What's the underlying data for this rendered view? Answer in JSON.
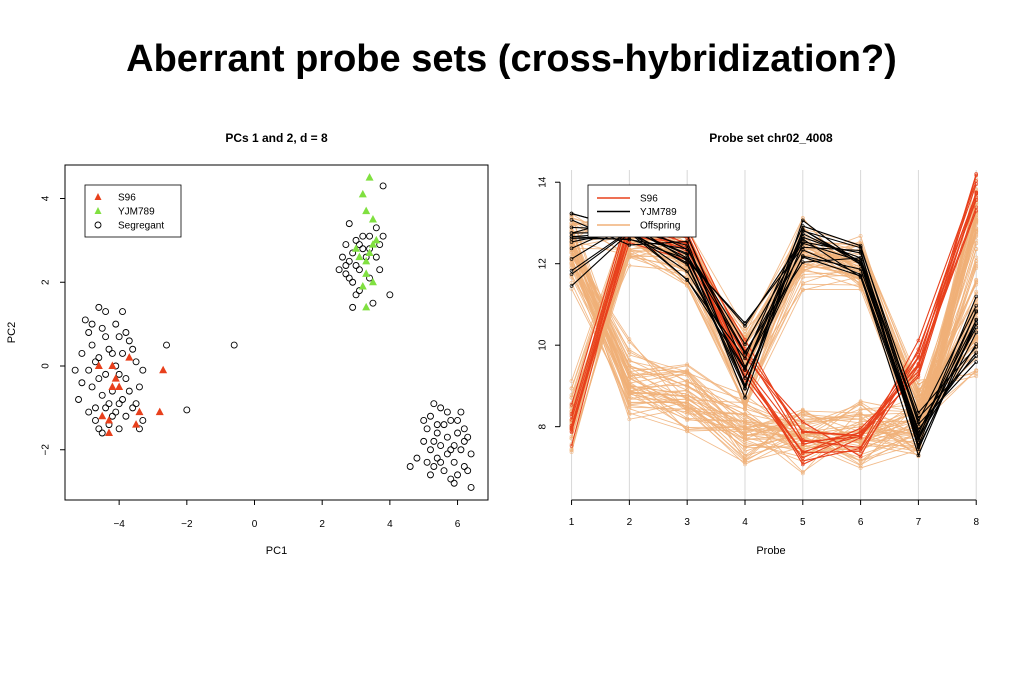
{
  "slide": {
    "title": "Aberrant probe sets (cross-hybridization?)"
  },
  "colors": {
    "s96": "#e8401c",
    "yjm789": "#80e040",
    "segregant": "#000000",
    "offspring": "#f0b078"
  },
  "chart_data": [
    {
      "type": "scatter",
      "title": "PCs 1 and 2, d = 8",
      "xlabel": "PC1",
      "ylabel": "PC2",
      "xlim": [
        -5.6,
        6.9
      ],
      "ylim": [
        -3.2,
        4.8
      ],
      "xticks": [
        -4,
        -2,
        0,
        2,
        4,
        6
      ],
      "yticks": [
        -2,
        0,
        2,
        4
      ],
      "legend": {
        "position": "top-left",
        "entries": [
          "S96",
          "YJM789",
          "Segregant"
        ]
      },
      "series": [
        {
          "name": "S96",
          "marker": "triangle",
          "color": "#e8401c",
          "points": [
            [
              -4.6,
              0.0
            ],
            [
              -4.2,
              0.0
            ],
            [
              -3.7,
              0.2
            ],
            [
              -4.2,
              -0.5
            ],
            [
              -4.0,
              -0.5
            ],
            [
              -4.5,
              -1.2
            ],
            [
              -4.3,
              -1.3
            ],
            [
              -4.3,
              -1.6
            ],
            [
              -3.4,
              -1.1
            ],
            [
              -3.5,
              -1.4
            ],
            [
              -2.8,
              -1.1
            ],
            [
              -2.7,
              -0.1
            ],
            [
              -4.1,
              -0.3
            ]
          ]
        },
        {
          "name": "YJM789",
          "marker": "triangle",
          "color": "#80e040",
          "points": [
            [
              3.4,
              4.5
            ],
            [
              3.2,
              4.1
            ],
            [
              3.3,
              3.7
            ],
            [
              3.5,
              3.5
            ],
            [
              3.5,
              2.9
            ],
            [
              3.6,
              3.0
            ],
            [
              3.1,
              2.6
            ],
            [
              3.3,
              2.5
            ],
            [
              3.3,
              2.2
            ],
            [
              3.5,
              2.0
            ],
            [
              3.2,
              1.9
            ],
            [
              3.3,
              1.4
            ],
            [
              3.0,
              2.8
            ],
            [
              3.4,
              2.7
            ]
          ]
        },
        {
          "name": "Segregant",
          "marker": "circle",
          "color": "#000000",
          "points": [
            [
              -5.2,
              -0.8
            ],
            [
              -5.1,
              0.3
            ],
            [
              -5.0,
              1.1
            ],
            [
              -4.9,
              0.8
            ],
            [
              -4.9,
              -0.1
            ],
            [
              -4.8,
              -0.5
            ],
            [
              -4.8,
              0.5
            ],
            [
              -4.7,
              -1.0
            ],
            [
              -4.7,
              -1.3
            ],
            [
              -4.6,
              1.4
            ],
            [
              -4.6,
              0.2
            ],
            [
              -4.6,
              -0.3
            ],
            [
              -4.5,
              -0.7
            ],
            [
              -4.5,
              -1.6
            ],
            [
              -4.4,
              1.3
            ],
            [
              -4.4,
              0.7
            ],
            [
              -4.4,
              -0.2
            ],
            [
              -4.3,
              -0.9
            ],
            [
              -4.3,
              -1.4
            ],
            [
              -4.2,
              0.3
            ],
            [
              -4.2,
              -0.6
            ],
            [
              -4.1,
              1.0
            ],
            [
              -4.1,
              -1.1
            ],
            [
              -4.0,
              0.7
            ],
            [
              -4.0,
              -0.2
            ],
            [
              -4.0,
              -1.5
            ],
            [
              -3.9,
              0.3
            ],
            [
              -3.9,
              -0.8
            ],
            [
              -3.8,
              -0.3
            ],
            [
              -3.8,
              -1.2
            ],
            [
              -3.7,
              0.6
            ],
            [
              -3.7,
              -0.6
            ],
            [
              -3.6,
              -1.0
            ],
            [
              -3.5,
              0.1
            ],
            [
              -3.4,
              -0.5
            ],
            [
              -3.4,
              -1.5
            ],
            [
              -3.3,
              -0.1
            ],
            [
              -5.3,
              -0.1
            ],
            [
              -5.1,
              -0.4
            ],
            [
              -4.9,
              -1.1
            ],
            [
              -4.8,
              1.0
            ],
            [
              -4.7,
              0.1
            ],
            [
              -4.6,
              -1.5
            ],
            [
              -4.5,
              0.9
            ],
            [
              -4.4,
              -1.0
            ],
            [
              -4.3,
              0.4
            ],
            [
              -4.2,
              -1.2
            ],
            [
              -4.1,
              0.0
            ],
            [
              -4.0,
              -0.9
            ],
            [
              -3.9,
              1.3
            ],
            [
              -3.8,
              0.8
            ],
            [
              -3.6,
              0.4
            ],
            [
              -3.5,
              -0.9
            ],
            [
              -3.3,
              -1.3
            ],
            [
              -2.6,
              0.5
            ],
            [
              -2.0,
              -1.05
            ],
            [
              -0.6,
              0.5
            ],
            [
              2.5,
              2.3
            ],
            [
              2.6,
              2.6
            ],
            [
              2.7,
              2.9
            ],
            [
              2.7,
              2.2
            ],
            [
              2.8,
              3.4
            ],
            [
              2.8,
              2.5
            ],
            [
              2.9,
              2.0
            ],
            [
              2.9,
              2.7
            ],
            [
              2.9,
              1.4
            ],
            [
              3.0,
              2.4
            ],
            [
              3.0,
              3.0
            ],
            [
              3.1,
              2.3
            ],
            [
              3.1,
              1.8
            ],
            [
              3.2,
              2.8
            ],
            [
              3.2,
              3.1
            ],
            [
              3.3,
              2.6
            ],
            [
              3.4,
              2.8
            ],
            [
              3.4,
              2.1
            ],
            [
              3.5,
              1.5
            ],
            [
              3.6,
              2.6
            ],
            [
              3.7,
              2.9
            ],
            [
              3.7,
              2.3
            ],
            [
              3.8,
              3.1
            ],
            [
              3.8,
              4.3
            ],
            [
              4.0,
              1.7
            ],
            [
              3.6,
              3.3
            ],
            [
              2.8,
              2.1
            ],
            [
              3.0,
              1.7
            ],
            [
              3.4,
              3.1
            ],
            [
              3.1,
              2.9
            ],
            [
              2.7,
              2.4
            ],
            [
              4.6,
              -2.4
            ],
            [
              4.8,
              -2.2
            ],
            [
              5.0,
              -1.8
            ],
            [
              5.1,
              -2.3
            ],
            [
              5.1,
              -1.5
            ],
            [
              5.2,
              -2.0
            ],
            [
              5.2,
              -1.2
            ],
            [
              5.3,
              -2.4
            ],
            [
              5.3,
              -0.9
            ],
            [
              5.4,
              -1.6
            ],
            [
              5.4,
              -2.2
            ],
            [
              5.5,
              -1.0
            ],
            [
              5.5,
              -1.9
            ],
            [
              5.6,
              -2.5
            ],
            [
              5.6,
              -1.4
            ],
            [
              5.7,
              -2.1
            ],
            [
              5.7,
              -1.7
            ],
            [
              5.8,
              -2.7
            ],
            [
              5.8,
              -1.3
            ],
            [
              5.9,
              -2.3
            ],
            [
              5.9,
              -1.9
            ],
            [
              6.0,
              -2.6
            ],
            [
              6.0,
              -1.6
            ],
            [
              6.1,
              -1.1
            ],
            [
              6.1,
              -2.0
            ],
            [
              6.2,
              -2.4
            ],
            [
              6.2,
              -1.5
            ],
            [
              6.3,
              -2.5
            ],
            [
              6.4,
              -2.1
            ],
            [
              6.4,
              -2.9
            ],
            [
              5.9,
              -2.8
            ],
            [
              5.3,
              -1.8
            ],
            [
              5.5,
              -2.3
            ],
            [
              5.7,
              -1.1
            ],
            [
              6.0,
              -1.3
            ],
            [
              5.2,
              -2.6
            ],
            [
              6.2,
              -1.8
            ],
            [
              5.4,
              -1.4
            ],
            [
              5.8,
              -2.0
            ],
            [
              5.0,
              -1.3
            ],
            [
              6.3,
              -1.7
            ]
          ]
        }
      ]
    },
    {
      "type": "line",
      "title": "Probe set chr02_4008",
      "xlabel": "Probe",
      "ylabel": "",
      "x": [
        1,
        2,
        3,
        4,
        5,
        6,
        7,
        8
      ],
      "xlim": [
        0.8,
        8.1
      ],
      "ylim": [
        6.2,
        14.3
      ],
      "yticks": [
        8,
        10,
        12,
        14
      ],
      "grid": "vertical",
      "legend": {
        "position": "top-left",
        "entries": [
          "S96",
          "YJM789",
          "Offspring"
        ]
      },
      "series": [
        {
          "name": "Offspring",
          "color": "#f0b078",
          "profiles": {
            "segregant_A": [
              13.0,
              12.8,
              12.4,
              9.8,
              12.3,
              12.0,
              8.3,
              10.5
            ],
            "segregant_B": [
              12.5,
              9.0,
              8.8,
              7.8,
              7.8,
              7.6,
              8.0,
              12.5
            ],
            "segregant_C": [
              8.0,
              12.8,
              12.0,
              9.0,
              12.0,
              11.7,
              8.2,
              11.0
            ],
            "segregant_D": [
              12.6,
              9.5,
              9.0,
              8.3,
              7.5,
              7.8,
              8.2,
              13.2
            ],
            "segregant_E": [
              8.5,
              12.6,
              12.2,
              10.0,
              12.5,
              12.1,
              8.5,
              9.8
            ],
            "segregant_F": [
              12.0,
              8.8,
              8.5,
              7.5,
              7.8,
              8.0,
              7.8,
              13.5
            ]
          }
        },
        {
          "name": "S96",
          "color": "#e8401c",
          "profiles": {
            "s96_1": [
              8.0,
              12.9,
              12.6,
              9.5,
              7.4,
              7.8,
              9.5,
              13.7
            ],
            "s96_2": [
              8.3,
              13.0,
              12.3,
              9.8,
              7.8,
              7.5,
              10.0,
              13.8
            ],
            "s96_3": [
              7.8,
              12.7,
              12.4,
              9.2,
              7.2,
              7.6,
              9.8,
              13.4
            ],
            "s96_4": [
              8.2,
              12.8,
              12.6,
              9.6,
              7.6,
              7.7,
              9.4,
              13.9
            ]
          }
        },
        {
          "name": "YJM789",
          "color": "#000000",
          "profiles": {
            "yjm_1": [
              13.2,
              12.8,
              12.4,
              9.2,
              12.5,
              12.1,
              7.8,
              10.0
            ],
            "yjm_2": [
              12.8,
              12.9,
              12.5,
              9.8,
              12.0,
              11.8,
              7.5,
              10.5
            ],
            "yjm_3": [
              13.0,
              12.6,
              11.9,
              9.5,
              12.7,
              12.2,
              8.0,
              9.8
            ],
            "yjm_4": [
              12.4,
              12.7,
              12.2,
              10.2,
              12.3,
              12.0,
              7.7,
              10.8
            ],
            "yjm_5": [
              11.8,
              12.9,
              12.0,
              9.0,
              12.8,
              12.3,
              7.9,
              11.0
            ]
          }
        }
      ]
    }
  ]
}
